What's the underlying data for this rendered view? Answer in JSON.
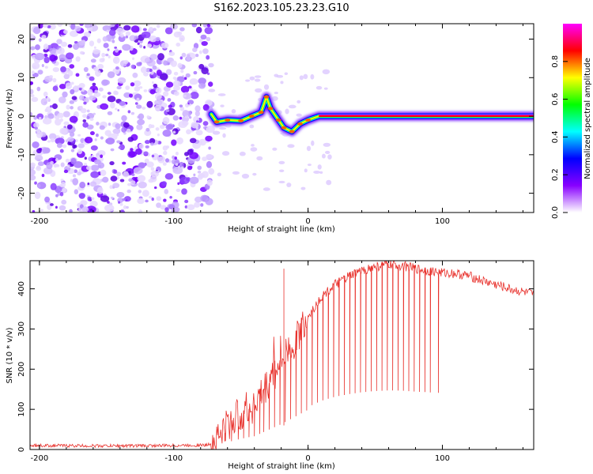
{
  "title": "S162.2023.105.23.23.G10",
  "chart_data": [
    {
      "type": "heatmap",
      "xlabel": "Height of straight line (km)",
      "ylabel": "Frequency (Hz)",
      "xlim": [
        -207,
        168
      ],
      "ylim": [
        -25,
        24
      ],
      "xticks": [
        -200,
        -100,
        0,
        100
      ],
      "yticks": [
        -20,
        -10,
        0,
        10,
        20
      ],
      "colorbar": {
        "label": "Normalized spectral amplitude",
        "range": [
          0,
          1
        ],
        "ticks": [
          "0.0",
          "0.2",
          "0.4",
          "0.6",
          "0.8"
        ],
        "tick_values": [
          0,
          0.2,
          0.4,
          0.6,
          0.8
        ],
        "colormap": [
          "#ffffff",
          "#8800ff",
          "#0000ff",
          "#00ffff",
          "#00ff00",
          "#ffff00",
          "#ff0000",
          "#ff00ff"
        ]
      },
      "noise_region_x": [
        -207,
        -72
      ],
      "signal_track": [
        {
          "x": -72,
          "f": 0.5
        },
        {
          "x": -68,
          "f": -1.5
        },
        {
          "x": -60,
          "f": -1
        },
        {
          "x": -50,
          "f": -1.2
        },
        {
          "x": -42,
          "f": 0
        },
        {
          "x": -35,
          "f": 1
        },
        {
          "x": -31,
          "f": 5
        },
        {
          "x": -28,
          "f": 2
        },
        {
          "x": -22,
          "f": -1
        },
        {
          "x": -18,
          "f": -3
        },
        {
          "x": -12,
          "f": -4
        },
        {
          "x": -6,
          "f": -2
        },
        {
          "x": 0,
          "f": -1
        },
        {
          "x": 8,
          "f": 0
        },
        {
          "x": 40,
          "f": 0
        },
        {
          "x": 80,
          "f": 0
        },
        {
          "x": 120,
          "f": 0
        },
        {
          "x": 168,
          "f": 0
        }
      ]
    },
    {
      "type": "line",
      "xlabel": "Height of straight line (km)",
      "ylabel": "SNR (10 * v/v)",
      "xlim": [
        -207,
        168
      ],
      "ylim": [
        0,
        470
      ],
      "xticks": [
        -200,
        -100,
        0,
        100
      ],
      "yticks": [
        0,
        100,
        200,
        300,
        400
      ],
      "color": "#e8302b",
      "series": [
        {
          "x": [
            -207,
            -150,
            -100,
            -75,
            -70,
            -60,
            -50,
            -40,
            -30,
            -20,
            -10,
            0,
            10,
            20,
            30,
            40,
            50,
            60,
            70,
            80,
            90,
            100,
            110,
            120,
            130,
            140,
            150,
            168
          ],
          "y": [
            10,
            9,
            10,
            11,
            20,
            60,
            90,
            110,
            160,
            210,
            270,
            330,
            380,
            410,
            430,
            445,
            455,
            460,
            458,
            450,
            445,
            440,
            438,
            432,
            420,
            410,
            400,
            385
          ]
        }
      ],
      "dropouts_x": [
        -62,
        -57,
        -52,
        -48,
        -44,
        -40,
        -36,
        -33,
        -29,
        -25,
        -21,
        -17,
        -13,
        -9,
        -5,
        -1,
        3,
        7,
        11,
        15,
        19,
        23,
        27,
        31,
        35,
        39,
        43,
        47,
        51,
        55,
        59,
        63,
        67,
        71,
        75,
        79,
        83,
        87,
        91,
        97
      ]
    }
  ]
}
